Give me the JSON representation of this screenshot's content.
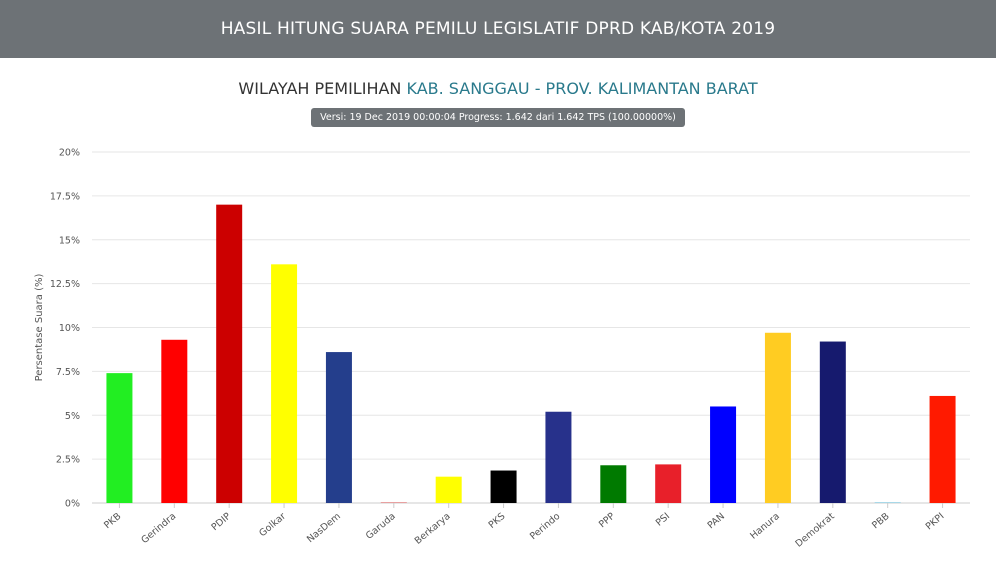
{
  "header": {
    "title": "HASIL HITUNG SUARA PEMILU LEGISLATIF DPRD KAB/KOTA 2019"
  },
  "region": {
    "prefix": "WILAYAH PEMILIHAN",
    "place": "KAB. SANGGAU - PROV. KALIMANTAN BARAT"
  },
  "version": {
    "text": "Versi: 19 Dec 2019 00:00:04 Progress: 1.642 dari 1.642 TPS (100.00000%)"
  },
  "chart_data": {
    "type": "bar",
    "title": "",
    "xlabel": "",
    "ylabel": "Persentase Suara (%)",
    "ylim": [
      0,
      20
    ],
    "yticks": [
      "0%",
      "2.5%",
      "5%",
      "7.5%",
      "10%",
      "12.5%",
      "15%",
      "17.5%",
      "20%"
    ],
    "grid": true,
    "categories": [
      "PKB",
      "Gerindra",
      "PDIP",
      "Golkar",
      "NasDem",
      "Garuda",
      "Berkarya",
      "PKS",
      "Perindo",
      "PPP",
      "PSI",
      "PAN",
      "Hanura",
      "Demokrat",
      "PBB",
      "PKPI"
    ],
    "values": [
      7.4,
      9.3,
      17.0,
      13.6,
      8.6,
      0.05,
      1.5,
      1.85,
      5.2,
      2.15,
      2.2,
      5.5,
      9.7,
      9.2,
      0.02,
      6.1
    ],
    "colors": [
      "#22ee22",
      "#ff0000",
      "#cc0000",
      "#ffff00",
      "#243e8c",
      "#e8a0a0",
      "#ffff00",
      "#000000",
      "#27318b",
      "#007a00",
      "#e8202a",
      "#0000ff",
      "#ffcc22",
      "#161a6e",
      "#a8d8e8",
      "#ff1a00"
    ]
  }
}
